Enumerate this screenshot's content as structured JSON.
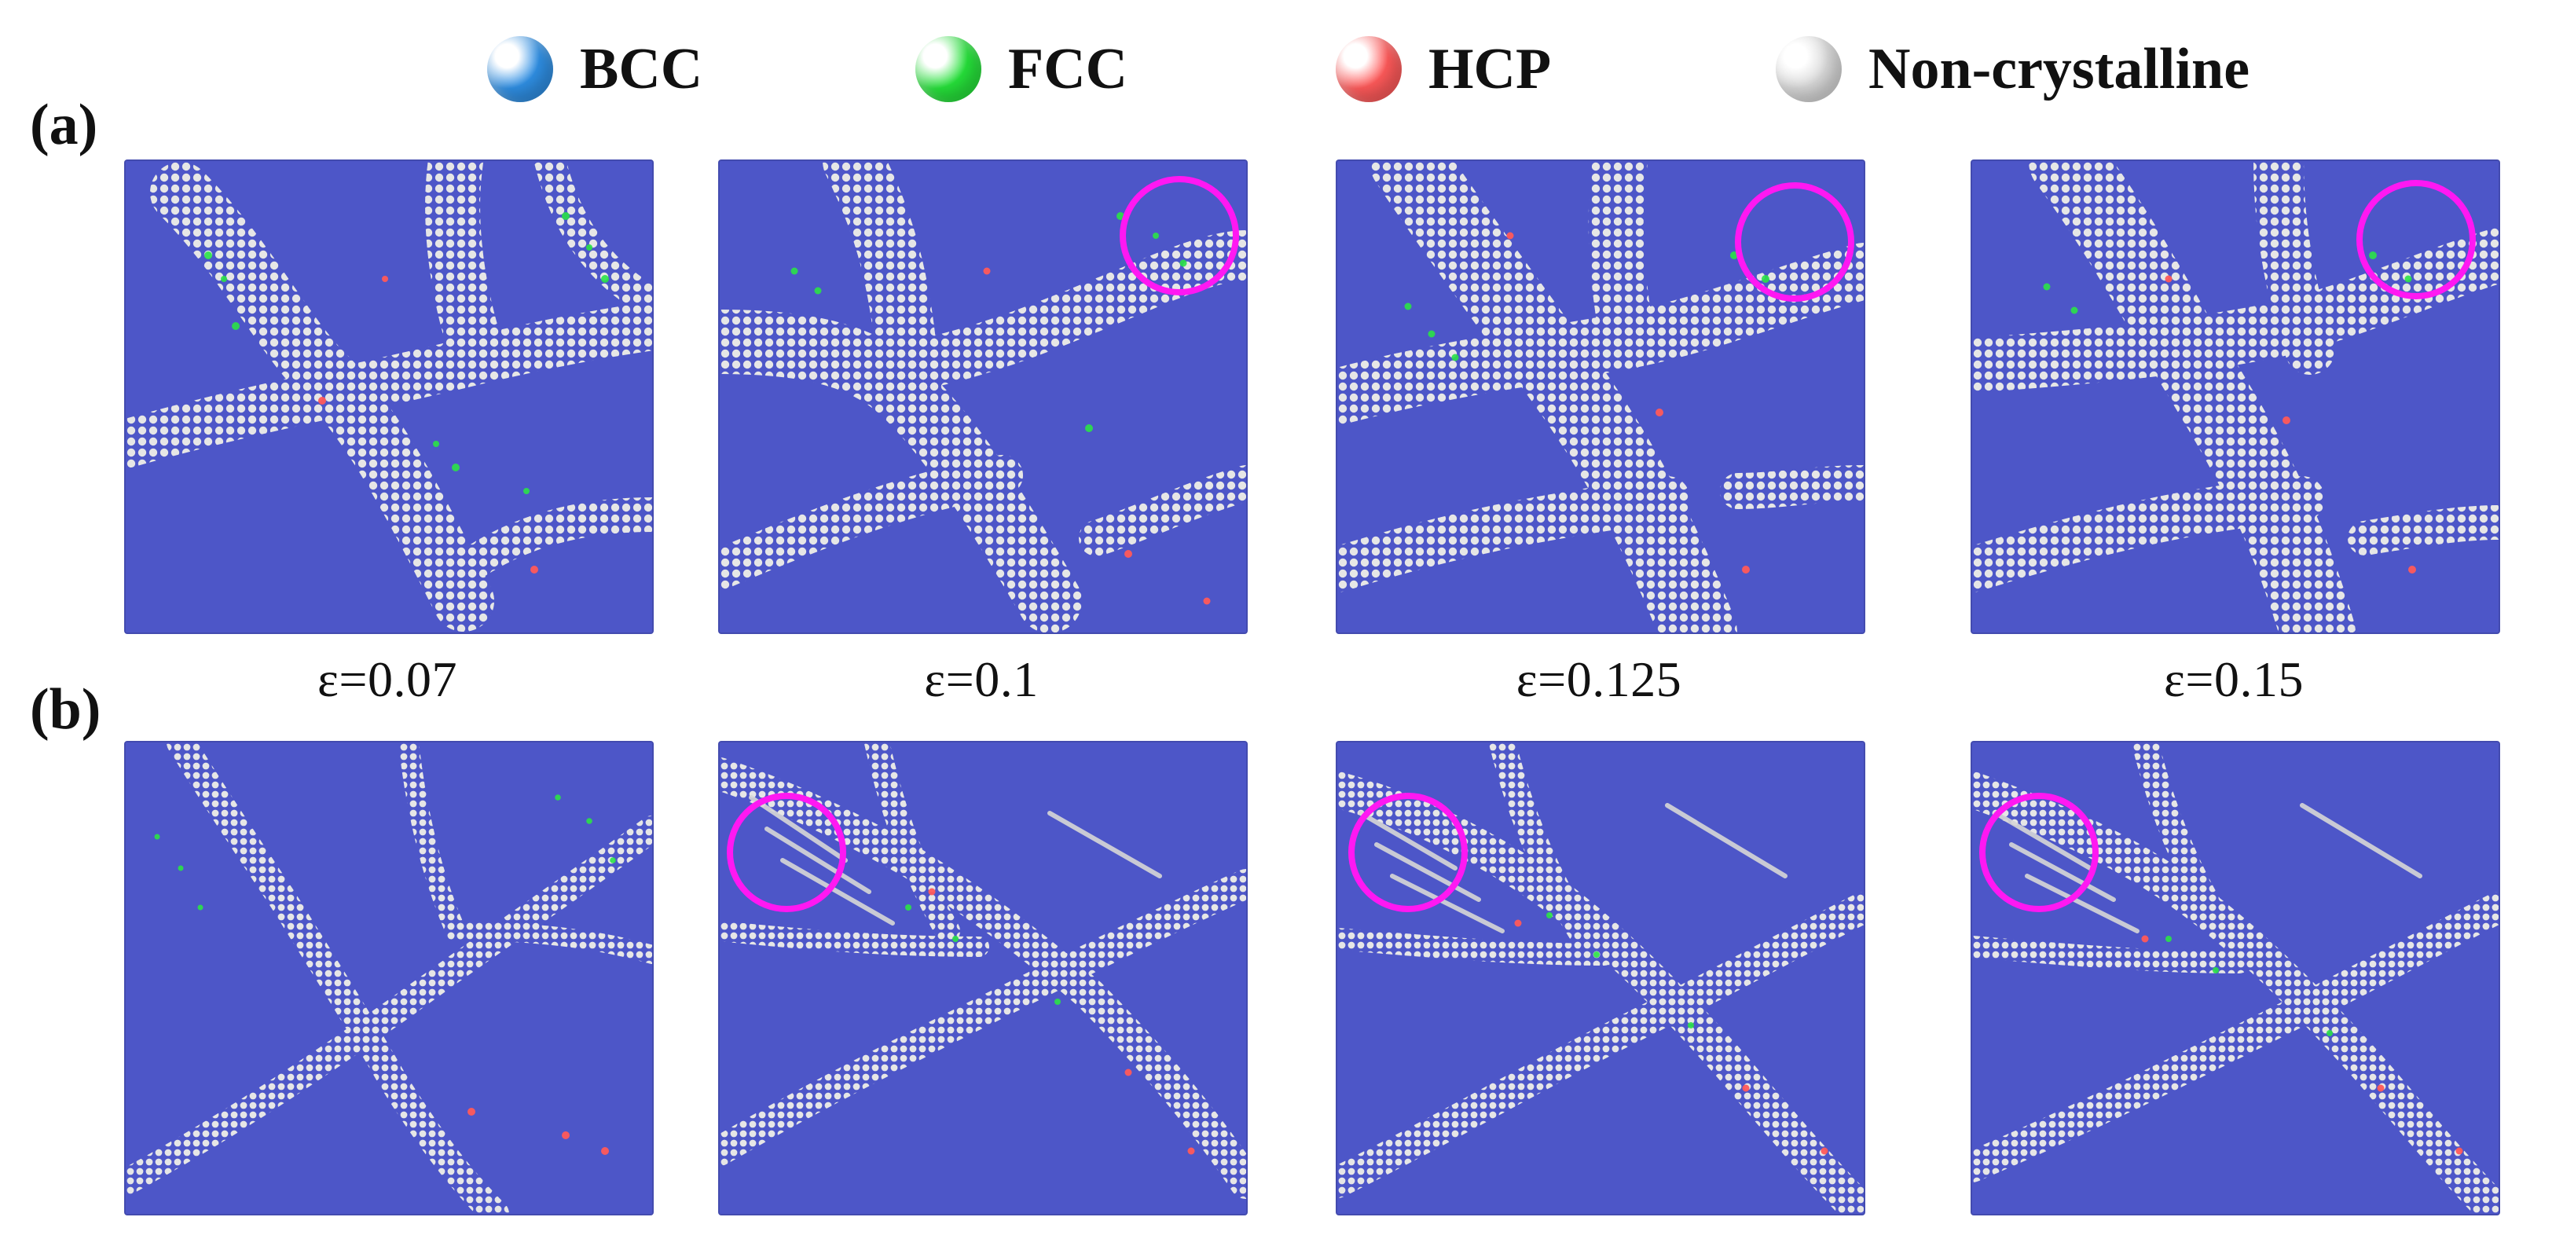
{
  "legend": {
    "items": [
      {
        "label": "BCC",
        "color": "#2f8fe4"
      },
      {
        "label": "FCC",
        "color": "#26e13a"
      },
      {
        "label": "HCP",
        "color": "#ff5a5a"
      },
      {
        "label": "Non-crystalline",
        "color": "#d8d8d8"
      }
    ]
  },
  "rows": [
    {
      "label": "(a)"
    },
    {
      "label": "(b)"
    }
  ],
  "strains": [
    "ε=0.07",
    "ε=0.1",
    "ε=0.125",
    "ε=0.15"
  ],
  "colors": {
    "bcc_atom": "#4d56c8",
    "boundary": "#d7d7d7",
    "fcc_atom": "#2be247",
    "hcp_atom": "#ff5a5a",
    "highlight_circle": "#ff18f2"
  }
}
